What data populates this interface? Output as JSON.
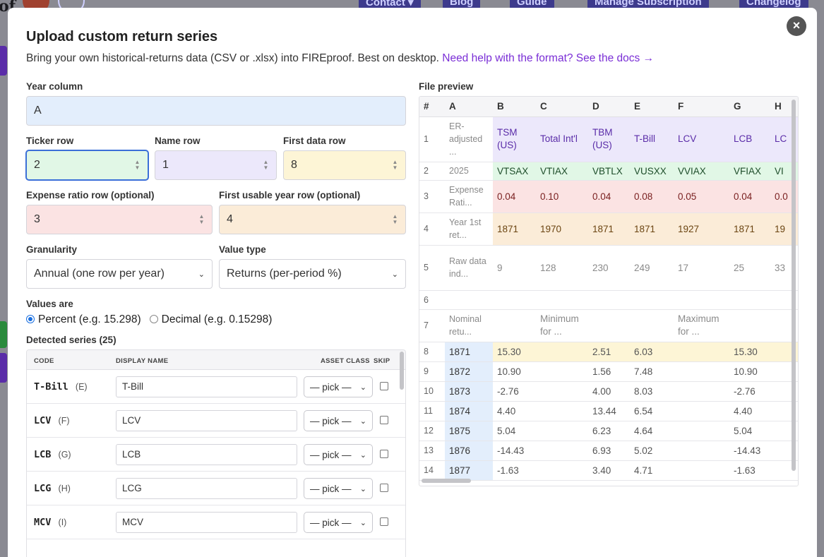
{
  "background": {
    "logo_fragment": "of",
    "nav": [
      "Contact ▾",
      "Blog",
      "Guide",
      "Manage Subscription",
      "Changelog"
    ]
  },
  "modal": {
    "title": "Upload custom return series",
    "subtitle": "Bring your own historical-returns data (CSV or .xlsx) into FIREproof. Best on desktop.",
    "help_link": "Need help with the format? See the docs →",
    "close_label": "×"
  },
  "form": {
    "year_column": {
      "label": "Year column",
      "value": "A"
    },
    "ticker_row": {
      "label": "Ticker row",
      "value": "2"
    },
    "name_row": {
      "label": "Name row",
      "value": "1"
    },
    "first_data_row": {
      "label": "First data row",
      "value": "8"
    },
    "expense_ratio_row": {
      "label": "Expense ratio row (optional)",
      "value": "3"
    },
    "first_usable_year_row": {
      "label": "First usable year row (optional)",
      "value": "4"
    },
    "granularity": {
      "label": "Granularity",
      "value": "Annual (one row per year)"
    },
    "value_type": {
      "label": "Value type",
      "value": "Returns (per-period %)"
    },
    "values_are": {
      "label": "Values are",
      "percent": "Percent (e.g. 15.298)",
      "decimal": "Decimal (e.g. 0.15298)",
      "selected": "percent"
    }
  },
  "series": {
    "label": "Detected series (25)",
    "columns": {
      "code": "CODE",
      "display_name": "DISPLAY NAME",
      "asset_class": "ASSET CLASS",
      "skip": "SKIP"
    },
    "rows": [
      {
        "code": "T-Bill",
        "col": "(E)",
        "name": "T-Bill",
        "pick": "— pick —"
      },
      {
        "code": "LCV",
        "col": "(F)",
        "name": "LCV",
        "pick": "— pick —"
      },
      {
        "code": "LCB",
        "col": "(G)",
        "name": "LCB",
        "pick": "— pick —"
      },
      {
        "code": "LCG",
        "col": "(H)",
        "name": "LCG",
        "pick": "— pick —"
      },
      {
        "code": "MCV",
        "col": "(I)",
        "name": "MCV",
        "pick": "— pick —"
      }
    ]
  },
  "preview": {
    "label": "File preview",
    "headers": [
      "#",
      "A",
      "B",
      "C",
      "D",
      "E",
      "F",
      "G",
      "H"
    ],
    "rows": [
      [
        "1",
        "ER-adjusted ...",
        "TSM (US)",
        "Total Int'l",
        "TBM (US)",
        "T-Bill",
        "LCV",
        "LCB",
        "LC"
      ],
      [
        "2",
        "2025",
        "VTSAX",
        "VTIAX",
        "VBTLX",
        "VUSXX",
        "VVIAX",
        "VFIAX",
        "VI"
      ],
      [
        "3",
        "Expense Rati...",
        "0.04",
        "0.10",
        "0.04",
        "0.08",
        "0.05",
        "0.04",
        "0.0"
      ],
      [
        "4",
        "Year 1st ret...",
        "1871",
        "1970",
        "1871",
        "1871",
        "1927",
        "1871",
        "19"
      ],
      [
        "5",
        "Raw data ind...",
        "9",
        "128",
        "230",
        "249",
        "17",
        "25",
        "33"
      ],
      [
        "6",
        "",
        "",
        "",
        "",
        "",
        "",
        "",
        ""
      ],
      [
        "7",
        "Nominal retu...",
        "",
        "Minimum for ...",
        "",
        "",
        "Maximum for ...",
        "",
        ""
      ],
      [
        "8",
        "1871",
        "15.30",
        "",
        "2.51",
        "6.03",
        "",
        "15.30",
        ""
      ],
      [
        "9",
        "1872",
        "10.90",
        "",
        "1.56",
        "7.48",
        "",
        "10.90",
        ""
      ],
      [
        "10",
        "1873",
        "-2.76",
        "",
        "4.00",
        "8.03",
        "",
        "-2.76",
        ""
      ],
      [
        "11",
        "1874",
        "4.40",
        "",
        "13.44",
        "6.54",
        "",
        "4.40",
        ""
      ],
      [
        "12",
        "1875",
        "5.04",
        "",
        "6.23",
        "4.64",
        "",
        "5.04",
        ""
      ],
      [
        "13",
        "1876",
        "-14.43",
        "",
        "6.93",
        "5.02",
        "",
        "-14.43",
        ""
      ],
      [
        "14",
        "1877",
        "-1.63",
        "",
        "3.40",
        "4.71",
        "",
        "-1.63",
        ""
      ]
    ]
  },
  "colors": {
    "accent_link": "#7a2ed6",
    "focus": "#3b6fd8"
  }
}
